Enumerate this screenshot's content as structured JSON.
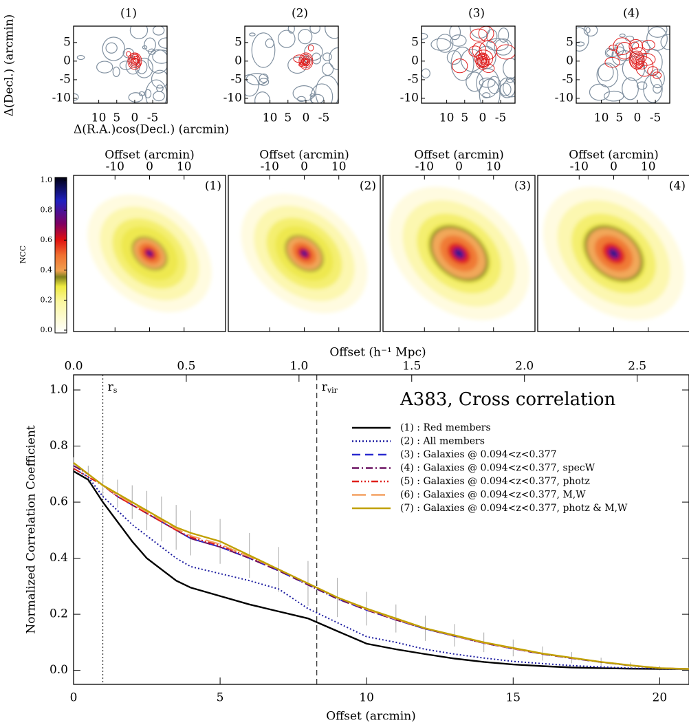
{
  "chart_data": [
    {
      "type": "contour",
      "panels": [
        "(1)",
        "(2)",
        "(3)",
        "(4)"
      ],
      "xlabel": "Δ(R.A.)cos(Decl.) (arcmin)",
      "ylabel": "Δ(Decl.) (arcmin)",
      "xlim": [
        17,
        -9
      ],
      "ylim": [
        -11.3,
        9.4
      ],
      "xticks": [
        10,
        5,
        0,
        -5
      ],
      "yticks": [
        5,
        0,
        -5,
        -10
      ]
    },
    {
      "type": "heatmap",
      "panels": [
        "(1)",
        "(2)",
        "(3)",
        "(4)"
      ],
      "xlabel": "Offset (arcmin)",
      "xlim": [
        -22,
        22
      ],
      "xticks": [
        -10,
        0,
        10
      ],
      "colorbar_label": "NCC",
      "clim": [
        0,
        1
      ],
      "cticks": [
        {
          "value": 0,
          "label": "0.0"
        },
        {
          "value": 0.2,
          "label": "0.2"
        },
        {
          "value": 0.4,
          "label": "0.4"
        },
        {
          "value": 0.6,
          "label": "0.6"
        },
        {
          "value": 0.8,
          "label": "0.8"
        },
        {
          "value": 1,
          "label": "1.0"
        }
      ]
    },
    {
      "type": "line",
      "title": "A383, Cross correlation",
      "xlabel": "Offset (arcmin)",
      "ylabel": "Normalized Correlation Coefficient",
      "x2label": "Offset (h⁻¹ Mpc)",
      "xlim": [
        0,
        21
      ],
      "ylim": [
        -0.05,
        1.054
      ],
      "x2lim": [
        0,
        2.73
      ],
      "xticks": [
        0,
        5,
        10,
        15,
        20
      ],
      "yticks": [
        {
          "value": 0,
          "label": "0.0"
        },
        {
          "value": 0.2,
          "label": "0.2"
        },
        {
          "value": 0.4,
          "label": "0.4"
        },
        {
          "value": 0.6,
          "label": "0.6"
        },
        {
          "value": 0.8,
          "label": "0.8"
        },
        {
          "value": 1,
          "label": "1.0"
        }
      ],
      "x2ticks": [
        {
          "value": 0,
          "label": "0.0"
        },
        0.5,
        {
          "value": 1,
          "label": "1.0"
        },
        1.5,
        {
          "value": 2,
          "label": "2.0"
        },
        2.5
      ],
      "vlines": [
        {
          "x": 1,
          "label": "r",
          "sub": "s",
          "dash": "2 3"
        },
        {
          "x": 8.3,
          "label": "r",
          "sub": "vir",
          "dash": "8 5"
        }
      ],
      "x": [
        0,
        0.5,
        1,
        1.5,
        2,
        2.5,
        3,
        3.5,
        4,
        5,
        6,
        7,
        8,
        9,
        10,
        11,
        12,
        13,
        14,
        15,
        16,
        17,
        18,
        19,
        20,
        21
      ],
      "series": [
        {
          "name": "(1) : Red members",
          "color": "#000000",
          "dash": "none",
          "values": [
            0.71,
            0.68,
            0.6,
            0.53,
            0.46,
            0.4,
            0.36,
            0.32,
            0.295,
            0.265,
            0.235,
            0.21,
            0.185,
            0.14,
            0.095,
            0.075,
            0.058,
            0.042,
            0.03,
            0.021,
            0.015,
            0.01,
            0.008,
            0.006,
            0.005,
            0.005
          ]
        },
        {
          "name": "(2) : All members",
          "color": "#1a1aa0",
          "dash": "2 3",
          "values": [
            0.72,
            0.69,
            0.62,
            0.57,
            0.52,
            0.48,
            0.44,
            0.4,
            0.37,
            0.345,
            0.32,
            0.29,
            0.22,
            0.17,
            0.12,
            0.1,
            0.075,
            0.058,
            0.044,
            0.032,
            0.024,
            0.017,
            0.012,
            0.008,
            0.006,
            0.005
          ]
        },
        {
          "name": "(3) : Galaxies @ 0.094<z<0.377",
          "color": "#2a2ad0",
          "dash": "12 7",
          "values": [
            0.73,
            0.7,
            0.66,
            0.62,
            0.59,
            0.56,
            0.53,
            0.5,
            0.47,
            0.44,
            0.4,
            0.355,
            0.305,
            0.255,
            0.215,
            0.18,
            0.148,
            0.122,
            0.097,
            0.077,
            0.058,
            0.043,
            0.029,
            0.017,
            0.008,
            0.005
          ]
        },
        {
          "name": "(4) : Galaxies @ 0.094<z<0.377, specW",
          "color": "#6a1060",
          "dash": "10 4 2 4",
          "values": [
            0.73,
            0.7,
            0.66,
            0.62,
            0.59,
            0.56,
            0.53,
            0.5,
            0.47,
            0.44,
            0.4,
            0.355,
            0.305,
            0.255,
            0.215,
            0.18,
            0.148,
            0.122,
            0.097,
            0.077,
            0.058,
            0.043,
            0.029,
            0.017,
            0.008,
            0.005
          ]
        },
        {
          "name": "(5) : Galaxies @ 0.094<z<0.377, photz",
          "color": "#e0201a",
          "dash": "10 3 2 3 2 3 2 3",
          "values": [
            0.72,
            0.69,
            0.66,
            0.62,
            0.59,
            0.56,
            0.53,
            0.5,
            0.475,
            0.445,
            0.405,
            0.36,
            0.31,
            0.26,
            0.218,
            0.182,
            0.15,
            0.123,
            0.098,
            0.078,
            0.059,
            0.044,
            0.03,
            0.018,
            0.008,
            0.005
          ]
        },
        {
          "name": "(6) : Galaxies @ 0.094<z<0.377, M,W",
          "color": "#f4a060",
          "dash": "20 8",
          "values": [
            0.74,
            0.7,
            0.66,
            0.625,
            0.595,
            0.565,
            0.535,
            0.505,
            0.48,
            0.45,
            0.405,
            0.36,
            0.31,
            0.26,
            0.218,
            0.182,
            0.15,
            0.123,
            0.098,
            0.078,
            0.059,
            0.044,
            0.03,
            0.018,
            0.008,
            0.005
          ]
        },
        {
          "name": "(7) : Galaxies @ 0.094<z<0.377, photz & M,W",
          "color": "#c0a000",
          "dash": "none",
          "values": [
            0.74,
            0.7,
            0.66,
            0.63,
            0.6,
            0.57,
            0.54,
            0.51,
            0.49,
            0.46,
            0.41,
            0.36,
            0.31,
            0.26,
            0.22,
            0.185,
            0.15,
            0.125,
            0.1,
            0.08,
            0.06,
            0.045,
            0.03,
            0.018,
            0.008,
            0.005
          ],
          "errors": [
            0.02,
            0.03,
            0.04,
            0.05,
            0.06,
            0.07,
            0.08,
            0.08,
            0.08,
            0.08,
            0.08,
            0.08,
            0.08,
            0.07,
            0.06,
            0.05,
            0.045,
            0.04,
            0.035,
            0.03,
            0.025,
            0.02,
            0.015,
            0.01,
            0.008,
            0.005
          ]
        }
      ]
    }
  ]
}
